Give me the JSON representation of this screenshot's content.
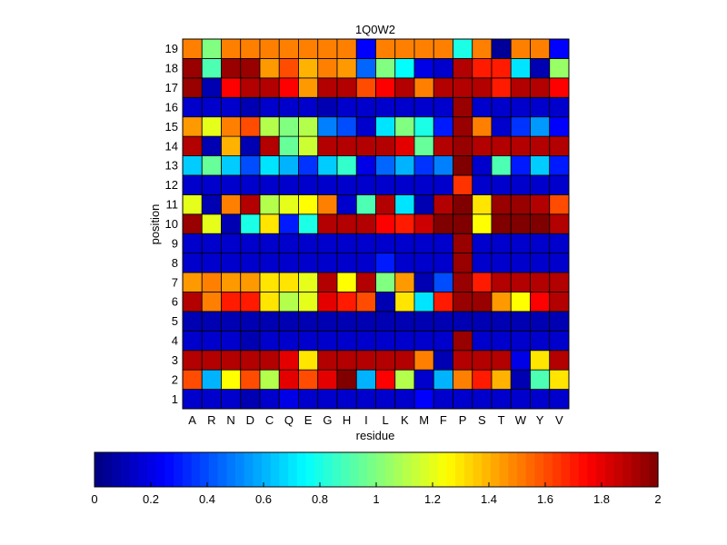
{
  "chart_data": {
    "type": "heatmap",
    "title": "1Q0W2",
    "xlabel": "residue",
    "ylabel": "position",
    "x_categories": [
      "A",
      "R",
      "N",
      "D",
      "C",
      "Q",
      "E",
      "G",
      "H",
      "I",
      "L",
      "K",
      "M",
      "F",
      "P",
      "S",
      "T",
      "W",
      "Y",
      "V"
    ],
    "y_categories": [
      "1",
      "2",
      "3",
      "4",
      "5",
      "6",
      "7",
      "8",
      "9",
      "10",
      "11",
      "12",
      "13",
      "14",
      "15",
      "16",
      "17",
      "18",
      "19"
    ],
    "values": [
      [
        0.15,
        0.15,
        0.15,
        0.1,
        0.15,
        0.2,
        0.15,
        0.15,
        0.15,
        0.15,
        0.15,
        0.15,
        0.25,
        0.15,
        0.15,
        0.15,
        0.15,
        0.15,
        0.15,
        0.15
      ],
      [
        1.6,
        0.6,
        1.25,
        1.6,
        1.1,
        1.8,
        1.6,
        1.8,
        2.0,
        0.6,
        1.75,
        1.1,
        0.15,
        0.6,
        1.5,
        1.7,
        1.4,
        0.1,
        0.9,
        1.3
      ],
      [
        1.9,
        1.9,
        1.9,
        1.9,
        1.9,
        1.8,
        1.3,
        1.9,
        1.9,
        1.9,
        1.9,
        1.9,
        1.5,
        0.1,
        1.9,
        1.9,
        1.9,
        0.2,
        1.3,
        1.9
      ],
      [
        0.15,
        0.15,
        0.15,
        0.1,
        0.15,
        0.15,
        0.15,
        0.15,
        0.15,
        0.15,
        0.15,
        0.15,
        0.15,
        0.15,
        1.95,
        0.15,
        0.15,
        0.15,
        0.15,
        0.15
      ],
      [
        0.1,
        0.1,
        0.1,
        0.1,
        0.1,
        0.1,
        0.1,
        0.1,
        0.1,
        0.1,
        0.1,
        0.1,
        0.1,
        0.1,
        0.1,
        0.1,
        0.1,
        0.1,
        0.1,
        0.1
      ],
      [
        1.9,
        1.5,
        1.7,
        1.7,
        1.3,
        1.1,
        1.2,
        1.8,
        1.7,
        1.6,
        0.1,
        1.3,
        0.7,
        1.7,
        1.95,
        1.95,
        1.45,
        1.25,
        1.75,
        1.9
      ],
      [
        1.45,
        1.5,
        1.45,
        1.45,
        1.3,
        1.3,
        1.2,
        1.9,
        1.25,
        1.9,
        1.0,
        1.45,
        0.1,
        0.4,
        1.95,
        1.7,
        1.9,
        1.9,
        1.9,
        1.9
      ],
      [
        0.15,
        0.15,
        0.15,
        0.15,
        0.15,
        0.15,
        0.15,
        0.15,
        0.15,
        0.15,
        0.3,
        0.15,
        0.15,
        0.15,
        1.95,
        0.15,
        0.15,
        0.15,
        0.15,
        0.15
      ],
      [
        0.15,
        0.15,
        0.15,
        0.15,
        0.15,
        0.15,
        0.15,
        0.15,
        0.15,
        0.15,
        0.15,
        0.15,
        0.15,
        0.15,
        1.95,
        0.15,
        0.15,
        0.15,
        0.15,
        0.15
      ],
      [
        1.95,
        1.2,
        0.1,
        0.8,
        1.3,
        0.3,
        0.8,
        1.9,
        1.9,
        1.9,
        1.75,
        1.7,
        1.85,
        2.0,
        2.0,
        1.25,
        2.0,
        2.0,
        2.0,
        1.9
      ],
      [
        1.2,
        0.1,
        1.5,
        1.9,
        1.1,
        1.2,
        1.25,
        1.5,
        0.15,
        0.9,
        1.9,
        0.7,
        0.1,
        1.9,
        2.0,
        1.3,
        1.95,
        1.95,
        1.9,
        1.6
      ],
      [
        0.15,
        0.15,
        0.15,
        0.15,
        0.15,
        0.15,
        0.15,
        0.15,
        0.15,
        0.15,
        0.15,
        0.15,
        0.15,
        0.15,
        1.65,
        0.15,
        0.15,
        0.15,
        0.15,
        0.15
      ],
      [
        0.65,
        0.95,
        0.65,
        0.4,
        0.7,
        0.6,
        0.35,
        0.65,
        0.85,
        0.2,
        0.45,
        0.6,
        0.35,
        0.5,
        2.0,
        0.15,
        0.9,
        0.3,
        0.65,
        0.3
      ],
      [
        1.9,
        0.1,
        1.4,
        0.1,
        1.9,
        0.95,
        1.15,
        1.9,
        1.9,
        1.9,
        1.9,
        1.8,
        0.95,
        1.9,
        1.95,
        1.9,
        1.9,
        1.9,
        1.9,
        1.9
      ],
      [
        1.45,
        1.2,
        1.5,
        1.6,
        1.1,
        1.0,
        1.1,
        0.5,
        0.4,
        0.15,
        0.7,
        1.0,
        0.8,
        0.3,
        1.95,
        1.5,
        0.15,
        0.35,
        0.55,
        0.25
      ],
      [
        0.15,
        0.15,
        0.15,
        0.1,
        0.15,
        0.15,
        0.15,
        0.1,
        0.15,
        0.15,
        0.15,
        0.15,
        0.15,
        0.15,
        1.95,
        0.15,
        0.15,
        0.15,
        0.15,
        0.15
      ],
      [
        1.95,
        0.1,
        1.75,
        1.9,
        1.9,
        1.75,
        1.45,
        1.9,
        1.9,
        1.6,
        1.75,
        1.9,
        1.5,
        1.9,
        1.9,
        1.9,
        1.7,
        1.9,
        1.9,
        1.75
      ],
      [
        1.95,
        0.9,
        1.95,
        1.95,
        1.45,
        1.6,
        1.4,
        1.5,
        1.45,
        0.45,
        1.0,
        0.75,
        0.2,
        0.15,
        1.9,
        1.7,
        1.7,
        0.7,
        0.1,
        1.05
      ],
      [
        1.5,
        1.0,
        1.5,
        1.5,
        1.5,
        1.5,
        1.5,
        1.5,
        1.5,
        0.25,
        1.5,
        1.5,
        1.5,
        1.5,
        0.8,
        1.5,
        0.05,
        1.5,
        1.5,
        0.25
      ]
    ],
    "colorbar": {
      "ticks": [
        "0",
        "0.2",
        "0.4",
        "0.6",
        "0.8",
        "1",
        "1.2",
        "1.4",
        "1.6",
        "1.8",
        "2"
      ],
      "range": [
        0,
        2
      ],
      "colormap": "jet",
      "placement": "bottom"
    },
    "grid": true
  }
}
